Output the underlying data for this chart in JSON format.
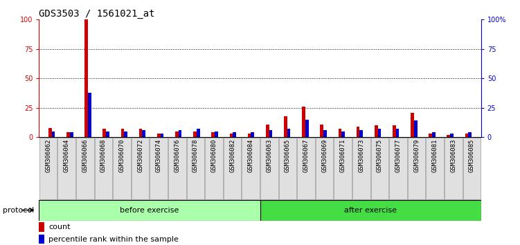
{
  "title": "GDS3503 / 1561021_at",
  "samples": [
    "GSM306062",
    "GSM306064",
    "GSM306066",
    "GSM306068",
    "GSM306070",
    "GSM306072",
    "GSM306074",
    "GSM306076",
    "GSM306078",
    "GSM306080",
    "GSM306082",
    "GSM306084",
    "GSM306063",
    "GSM306065",
    "GSM306067",
    "GSM306069",
    "GSM306071",
    "GSM306073",
    "GSM306075",
    "GSM306077",
    "GSM306079",
    "GSM306081",
    "GSM306083",
    "GSM306085"
  ],
  "count_values": [
    8,
    4,
    100,
    7,
    7,
    7,
    3,
    5,
    5,
    4,
    3,
    3,
    11,
    18,
    26,
    11,
    7,
    9,
    10,
    10,
    21,
    3,
    2,
    3
  ],
  "percentile_values": [
    5,
    4,
    38,
    5,
    5,
    6,
    3,
    6,
    7,
    5,
    4,
    4,
    6,
    7,
    15,
    6,
    5,
    6,
    7,
    7,
    14,
    4,
    3,
    4
  ],
  "before_exercise_count": 12,
  "after_exercise_count": 12,
  "before_color": "#aaffaa",
  "after_color": "#44dd44",
  "bar_color_red": "#cc0000",
  "bar_color_blue": "#0000cc",
  "ymax": 100,
  "ymin": 0,
  "yticks": [
    0,
    25,
    50,
    75,
    100
  ],
  "protocol_label": "protocol",
  "before_label": "before exercise",
  "after_label": "after exercise",
  "legend_count": "count",
  "legend_percentile": "percentile rank within the sample",
  "title_fontsize": 10,
  "tick_fontsize": 7,
  "label_fontsize": 8,
  "sample_fontsize": 6.5
}
